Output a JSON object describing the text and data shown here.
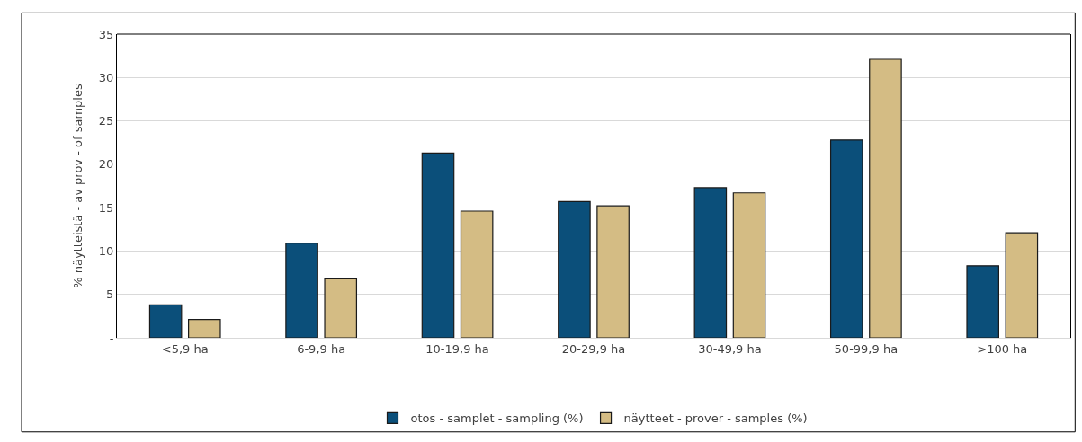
{
  "chart_data": {
    "type": "bar",
    "ylabel": "% näytteistä - av prov - of samples",
    "categories": [
      "<5,9 ha",
      "6-9,9 ha",
      "10-19,9 ha",
      "20-29,9 ha",
      "30-49,9 ha",
      "50-99,9 ha",
      ">100 ha"
    ],
    "series": [
      {
        "name": "otos - samplet - sampling (%)",
        "color": "#0b4f7a",
        "values": [
          3.8,
          10.9,
          21.3,
          15.7,
          17.3,
          22.8,
          8.3
        ]
      },
      {
        "name": "näytteet - prover - samples (%)",
        "color": "#d4bc84",
        "values": [
          2.1,
          6.8,
          14.6,
          15.2,
          16.7,
          32.1,
          12.1
        ]
      }
    ],
    "ylim": [
      0,
      35
    ],
    "yticks": [
      {
        "value": 0,
        "label": "-"
      },
      5,
      10,
      15,
      20,
      25,
      30,
      35
    ],
    "grid": "y",
    "legend": "bottom"
  }
}
